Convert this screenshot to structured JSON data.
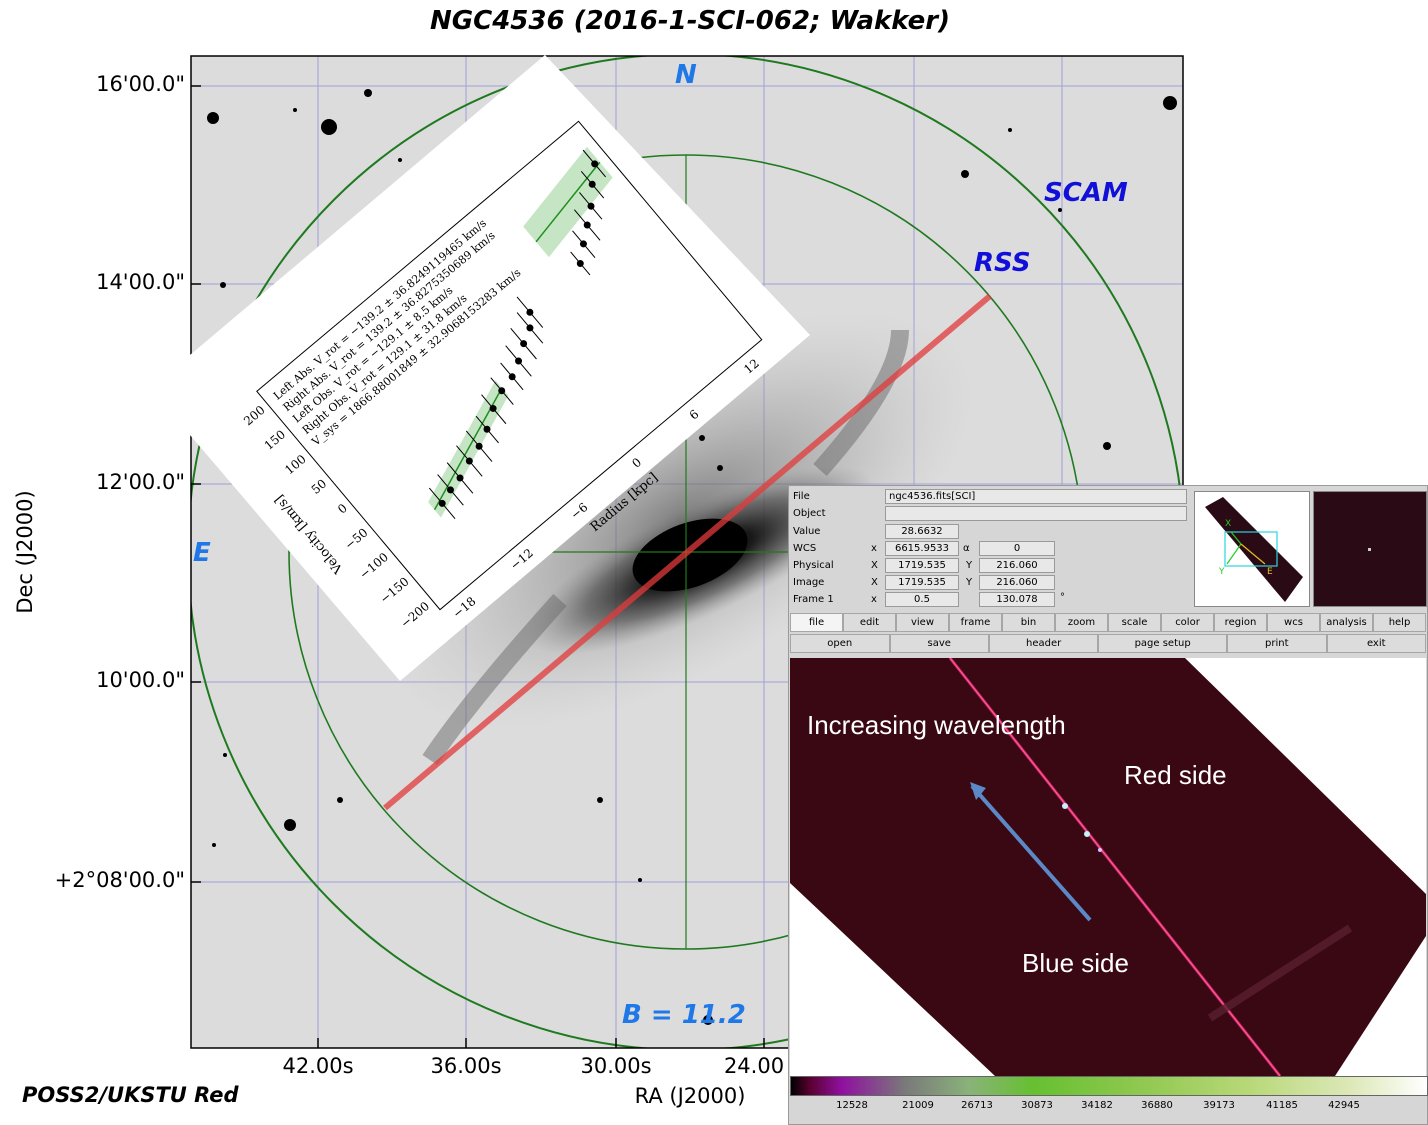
{
  "title": "NGC4536 (2016-1-SCI-062; Wakker)",
  "axes": {
    "y_label": "Dec (J2000)",
    "x_label": "RA (J2000)",
    "y_ticks": [
      "16'00.0\"",
      "14'00.0\"",
      "12'00.0\"",
      "10'00.0\"",
      "+2°08'00.0\""
    ],
    "x_ticks": [
      "42.00s",
      "36.00s",
      "30.00s",
      "24.00"
    ]
  },
  "survey_label": "POSS2/UKSTU Red",
  "overlay_labels": {
    "north": "N",
    "east": "E",
    "scam": "SCAM",
    "rss": "RSS",
    "magnitude": "B = 11.2"
  },
  "rotation_inset": {
    "legend": [
      "Left Abs. V_rot = −139.2 ± 36.8249119465 km/s",
      "Right Abs. V_rot = 139.2 ± 36.8275350689 km/s",
      "Left Obs. V_rot = −129.1 ± 8.5 km/s",
      "Right Obs. V_rot = 129.1 ± 31.8 km/s",
      "V_sys = 1866.88001849 ± 32.9068153283 km/s"
    ],
    "x_label": "Radius [kpc]",
    "y_label": "Velocity [km/s]",
    "x_ticks": [
      "−18",
      "−12",
      "−6",
      "0",
      "6",
      "12"
    ],
    "y_ticks": [
      "−200",
      "−150",
      "−100",
      "−50",
      "0",
      "50",
      "100",
      "150",
      "200"
    ]
  },
  "ds9": {
    "rows": [
      {
        "label": "File",
        "value": "ngc4536.fits[SCI]"
      },
      {
        "label": "Object",
        "value": ""
      },
      {
        "label": "Value",
        "value": "28.6632"
      },
      {
        "label": "WCS",
        "x": "6615.9533",
        "sym": "α",
        "y": "0"
      },
      {
        "label": "Physical",
        "xl": "X",
        "x": "1719.535",
        "yl": "Y",
        "y": "216.060"
      },
      {
        "label": "Image",
        "xl": "X",
        "x": "1719.535",
        "yl": "Y",
        "y": "216.060"
      },
      {
        "label": "Frame 1",
        "xl": "x",
        "x": "0.5",
        "y": "130.078",
        "unit": "°"
      }
    ],
    "menu": [
      "file",
      "edit",
      "view",
      "frame",
      "bin",
      "zoom",
      "scale",
      "color",
      "region",
      "wcs",
      "analysis",
      "help"
    ],
    "submenu": [
      "open",
      "save",
      "header",
      "page setup",
      "print",
      "exit"
    ],
    "annotations": {
      "increasing": "Increasing wavelength",
      "red": "Red side",
      "blue": "Blue side"
    },
    "colorbar_ticks": [
      "12528",
      "21009",
      "26713",
      "30873",
      "34182",
      "36880",
      "39173",
      "41185",
      "42945"
    ],
    "panner_axes": {
      "x": "X",
      "y": "Y",
      "e": "E"
    }
  }
}
